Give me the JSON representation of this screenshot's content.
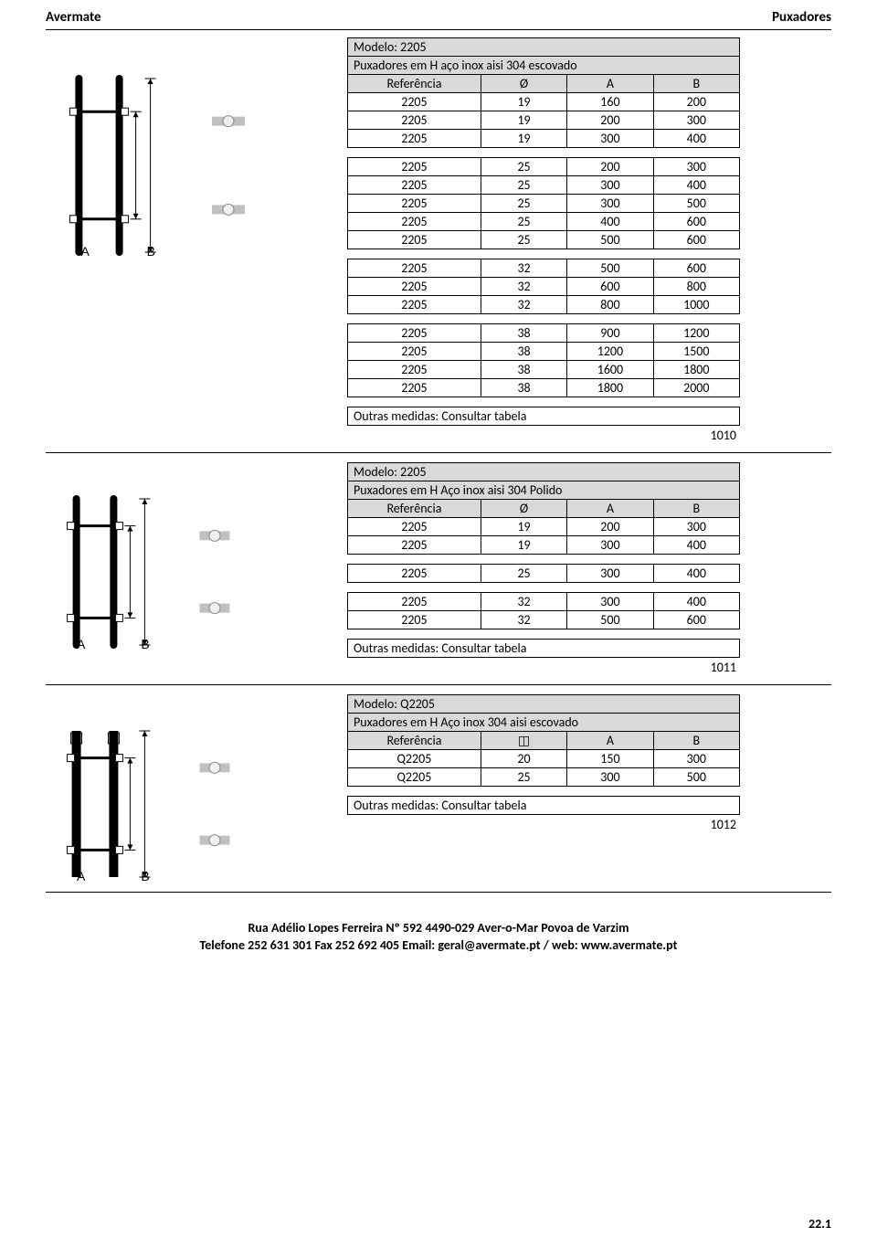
{
  "header": {
    "left": "Avermate",
    "right": "Puxadores"
  },
  "colors": {
    "header_bg": "#d9d9d9",
    "border": "#000000",
    "metal_light": "#f0f0f0",
    "metal_mid": "#c0c0c0",
    "metal_dark": "#888888",
    "line": "#000000"
  },
  "diagram_labels": {
    "a": "A",
    "b": "B"
  },
  "sections": [
    {
      "model_label": "Modelo: 2205",
      "desc": "Puxadores em H aço inox aisi 304 escovado",
      "col_headers": [
        "Referência",
        "Ø",
        "A",
        "B"
      ],
      "groups": [
        [
          [
            "2205",
            "19",
            "160",
            "200"
          ],
          [
            "2205",
            "19",
            "200",
            "300"
          ],
          [
            "2205",
            "19",
            "300",
            "400"
          ]
        ],
        [
          [
            "2205",
            "25",
            "200",
            "300"
          ],
          [
            "2205",
            "25",
            "300",
            "400"
          ],
          [
            "2205",
            "25",
            "300",
            "500"
          ],
          [
            "2205",
            "25",
            "400",
            "600"
          ],
          [
            "2205",
            "25",
            "500",
            "600"
          ]
        ],
        [
          [
            "2205",
            "32",
            "500",
            "600"
          ],
          [
            "2205",
            "32",
            "600",
            "800"
          ],
          [
            "2205",
            "32",
            "800",
            "1000"
          ]
        ],
        [
          [
            "2205",
            "38",
            "900",
            "1200"
          ],
          [
            "2205",
            "38",
            "1200",
            "1500"
          ],
          [
            "2205",
            "38",
            "1600",
            "1800"
          ],
          [
            "2205",
            "38",
            "1800",
            "2000"
          ]
        ]
      ],
      "note": "Outras medidas: Consultar tabela",
      "code": "1010",
      "shape": "round"
    },
    {
      "model_label": "Modelo: 2205",
      "desc": "Puxadores em H Aço inox aisi 304 Polido",
      "col_headers": [
        "Referência",
        "Ø",
        "A",
        "B"
      ],
      "groups": [
        [
          [
            "2205",
            "19",
            "200",
            "300"
          ],
          [
            "2205",
            "19",
            "300",
            "400"
          ]
        ],
        [
          [
            "2205",
            "25",
            "300",
            "400"
          ]
        ],
        [
          [
            "2205",
            "32",
            "300",
            "400"
          ],
          [
            "2205",
            "32",
            "500",
            "600"
          ]
        ]
      ],
      "note": "Outras medidas: Consultar tabela",
      "code": "1011",
      "shape": "round"
    },
    {
      "model_label": "Modelo: Q2205",
      "desc": "Puxadores  em H Aço inox 304 aisi escovado",
      "col_headers": [
        "Referência",
        "◫",
        "A",
        "B"
      ],
      "groups": [
        [
          [
            "Q2205",
            "20",
            "150",
            "300"
          ],
          [
            "Q2205",
            "25",
            "300",
            "500"
          ]
        ]
      ],
      "note": "Outras medidas: Consultar tabela",
      "code": "1012",
      "shape": "square"
    }
  ],
  "footer": {
    "line1": "Rua Adélio Lopes Ferreira Nº 592 4490-029 Aver-o-Mar Povoa de Varzim",
    "line2": "Telefone 252 631 301 Fax 252 692 405 Email: geral@avermate.pt / web: www.avermate.pt"
  },
  "page_number": "22.1"
}
